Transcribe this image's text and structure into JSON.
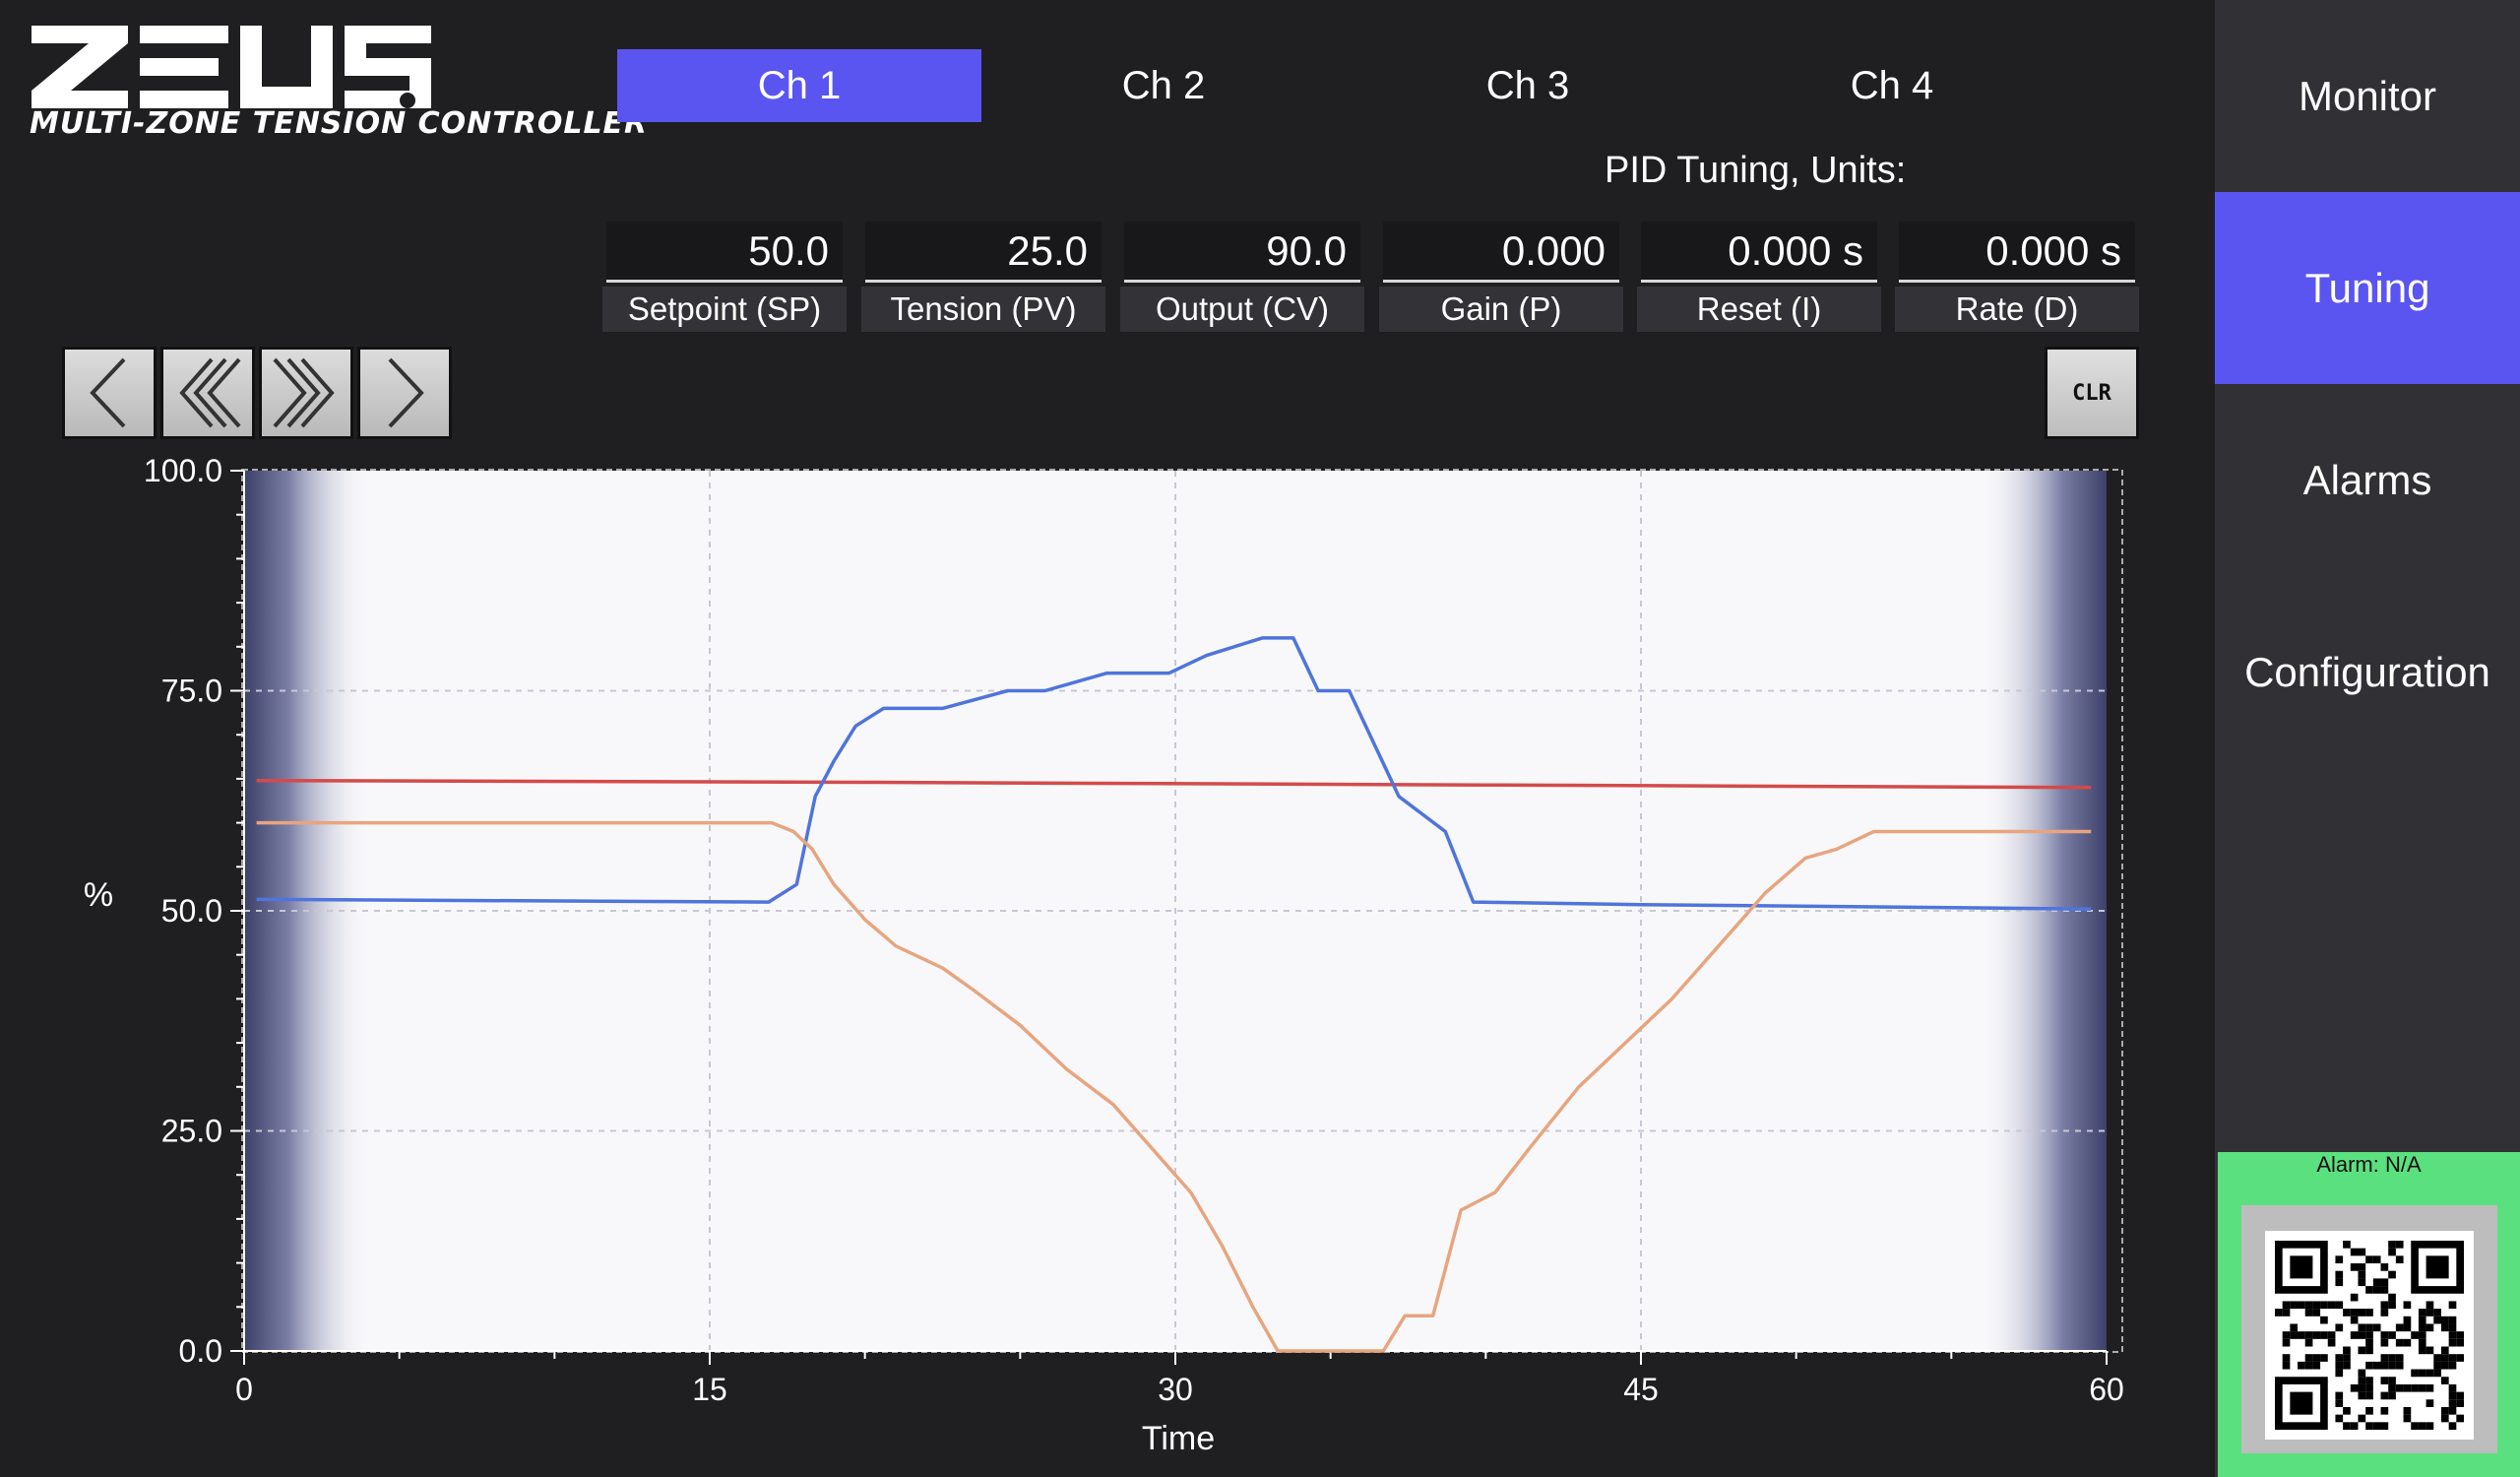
{
  "logo": {
    "wordmark": "ZEUS",
    "subtitle": "MULTI-ZONE TENSION CONTROLLER"
  },
  "tabs": [
    {
      "label": "Ch 1",
      "active": true
    },
    {
      "label": "Ch 2",
      "active": false
    },
    {
      "label": "Ch 3",
      "active": false
    },
    {
      "label": "Ch 4",
      "active": false
    }
  ],
  "pid_title": "PID Tuning, Units:",
  "params": [
    {
      "value": "50.0",
      "label": "Setpoint (SP)"
    },
    {
      "value": "25.0",
      "label": "Tension (PV)"
    },
    {
      "value": "90.0",
      "label": "Output (CV)"
    },
    {
      "value": "0.000",
      "label": "Gain (P)"
    },
    {
      "value": "0.000 s",
      "label": "Reset (I)"
    },
    {
      "value": "0.000 s",
      "label": "Rate (D)"
    }
  ],
  "nav_buttons": [
    {
      "icon": "chevron-left-icon"
    },
    {
      "icon": "double-chevron-left-icon"
    },
    {
      "icon": "double-chevron-right-icon"
    },
    {
      "icon": "chevron-right-icon"
    }
  ],
  "clear_label": "CLR",
  "sidebar": {
    "items": [
      {
        "label": "Monitor",
        "active": false
      },
      {
        "label": "Tuning",
        "active": true
      },
      {
        "label": "Alarms",
        "active": false
      },
      {
        "label": "Configuration",
        "active": false
      }
    ]
  },
  "alarm": {
    "text": "Alarm: N/A",
    "icon": "qr-code-icon"
  },
  "colors": {
    "accent": "#5a55f0",
    "background": "#1f1e21",
    "sidebar": "#313034",
    "alarm_ok": "#5be07f",
    "series_red": "#d44a4a",
    "series_blue": "#4f74dc",
    "series_orange": "#e7a57f"
  },
  "chart_data": {
    "type": "line",
    "xlabel": "Time",
    "ylabel": "%",
    "xlim": [
      0,
      60
    ],
    "ylim": [
      0,
      100
    ],
    "x_ticks": [
      "0",
      "15",
      "30",
      "45",
      "60"
    ],
    "y_ticks": [
      "0.0",
      "25.0",
      "50.0",
      "75.0",
      "100.0"
    ],
    "grid": true,
    "series": [
      {
        "color": "#d44a4a",
        "points": [
          [
            0.4,
            64.8
          ],
          [
            20,
            64.6
          ],
          [
            40,
            64.3
          ],
          [
            59.5,
            64.0
          ]
        ]
      },
      {
        "color": "#4f74dc",
        "points": [
          [
            0.4,
            51.3
          ],
          [
            16.9,
            51.0
          ],
          [
            17.8,
            53
          ],
          [
            18.4,
            63
          ],
          [
            19,
            67
          ],
          [
            19.7,
            71
          ],
          [
            20.6,
            73
          ],
          [
            22.5,
            73
          ],
          [
            24.6,
            75
          ],
          [
            25.8,
            75
          ],
          [
            27.8,
            77
          ],
          [
            29.8,
            77
          ],
          [
            31,
            79
          ],
          [
            32.8,
            81
          ],
          [
            33.8,
            81
          ],
          [
            34.6,
            75
          ],
          [
            35.6,
            75
          ],
          [
            37.2,
            63
          ],
          [
            38.7,
            59
          ],
          [
            39.6,
            51
          ],
          [
            45,
            50.7
          ],
          [
            59.5,
            50.2
          ]
        ]
      },
      {
        "color": "#e7a57f",
        "points": [
          [
            0.4,
            60
          ],
          [
            17,
            60
          ],
          [
            17.7,
            59
          ],
          [
            18.3,
            57
          ],
          [
            19,
            53
          ],
          [
            20,
            49
          ],
          [
            21,
            46
          ],
          [
            22.5,
            43.5
          ],
          [
            23.5,
            41
          ],
          [
            25,
            37
          ],
          [
            26.5,
            32
          ],
          [
            28,
            28
          ],
          [
            29.5,
            22
          ],
          [
            30.5,
            18
          ],
          [
            31.5,
            12
          ],
          [
            32.5,
            5
          ],
          [
            33.3,
            0
          ],
          [
            36.7,
            0
          ],
          [
            37.4,
            4
          ],
          [
            38.3,
            4
          ],
          [
            39.2,
            16
          ],
          [
            40.3,
            18
          ],
          [
            41.4,
            23
          ],
          [
            43,
            30
          ],
          [
            44.5,
            35
          ],
          [
            46,
            40
          ],
          [
            47.5,
            46
          ],
          [
            49,
            52
          ],
          [
            50.3,
            56
          ],
          [
            51.3,
            57
          ],
          [
            52.5,
            59
          ],
          [
            59.5,
            59
          ]
        ]
      }
    ]
  }
}
